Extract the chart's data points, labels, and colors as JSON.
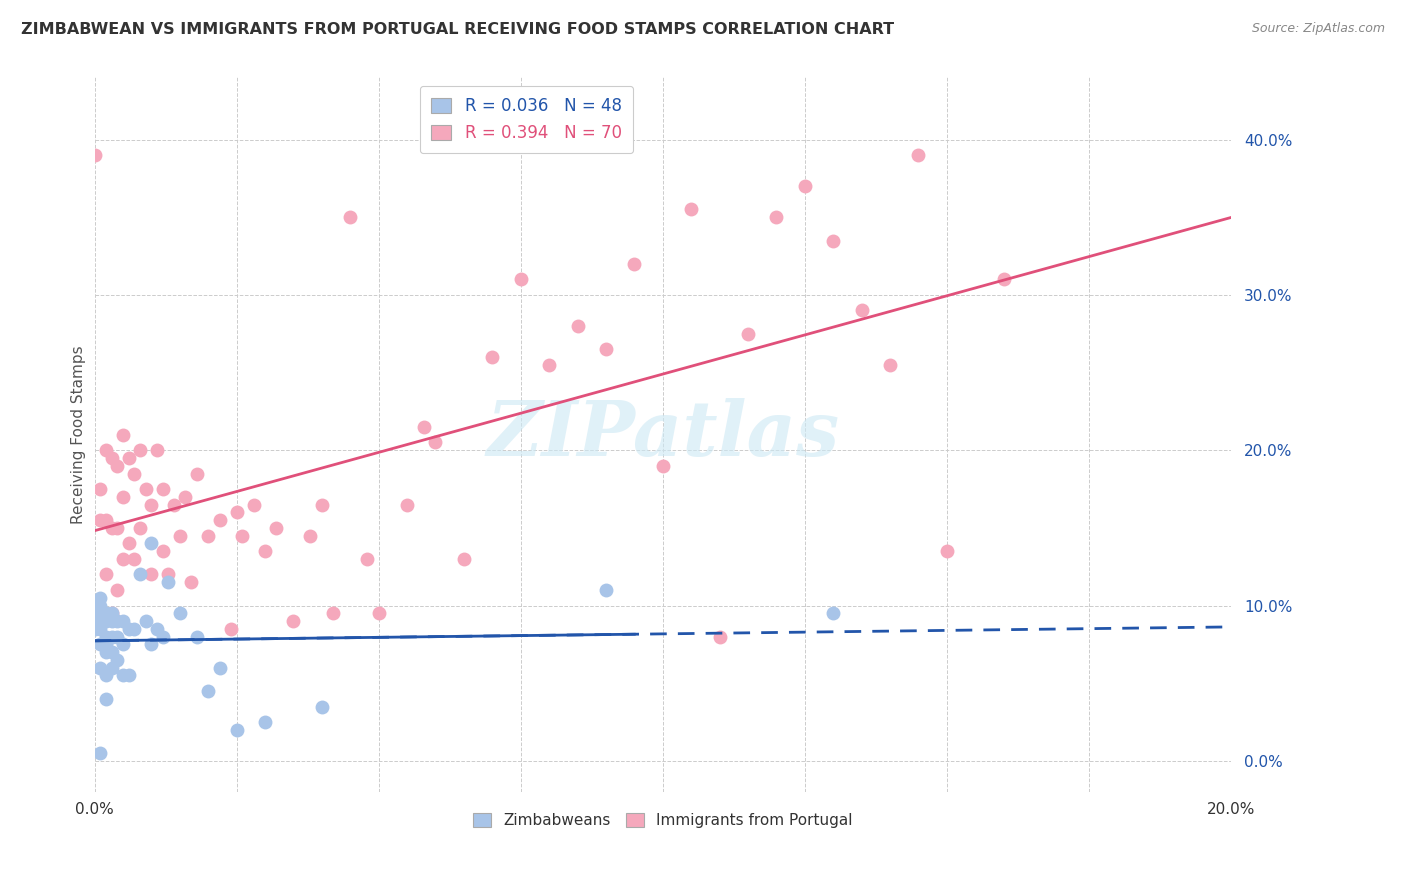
{
  "title": "ZIMBABWEAN VS IMMIGRANTS FROM PORTUGAL RECEIVING FOOD STAMPS CORRELATION CHART",
  "source": "Source: ZipAtlas.com",
  "ylabel": "Receiving Food Stamps",
  "ytick_values": [
    0.0,
    0.1,
    0.2,
    0.3,
    0.4
  ],
  "xlim": [
    0.0,
    0.2
  ],
  "ylim": [
    -0.02,
    0.44
  ],
  "blue_R": 0.036,
  "blue_N": 48,
  "pink_R": 0.394,
  "pink_N": 70,
  "blue_color": "#a8c4e8",
  "pink_color": "#f5a8bc",
  "blue_line_color": "#2255aa",
  "pink_line_color": "#e0507a",
  "watermark": "ZIPatlas",
  "legend_label_blue": "Zimbabweans",
  "legend_label_pink": "Immigrants from Portugal",
  "blue_scatter_x": [
    0.0,
    0.0,
    0.0,
    0.001,
    0.001,
    0.001,
    0.001,
    0.001,
    0.001,
    0.001,
    0.001,
    0.002,
    0.002,
    0.002,
    0.002,
    0.002,
    0.002,
    0.002,
    0.003,
    0.003,
    0.003,
    0.003,
    0.003,
    0.004,
    0.004,
    0.004,
    0.005,
    0.005,
    0.005,
    0.006,
    0.006,
    0.007,
    0.008,
    0.009,
    0.01,
    0.01,
    0.011,
    0.012,
    0.013,
    0.015,
    0.018,
    0.02,
    0.022,
    0.025,
    0.03,
    0.04,
    0.09,
    0.13
  ],
  "blue_scatter_y": [
    0.085,
    0.09,
    0.095,
    0.005,
    0.06,
    0.075,
    0.085,
    0.09,
    0.095,
    0.1,
    0.105,
    0.04,
    0.055,
    0.07,
    0.075,
    0.08,
    0.09,
    0.095,
    0.06,
    0.07,
    0.08,
    0.09,
    0.095,
    0.065,
    0.08,
    0.09,
    0.055,
    0.075,
    0.09,
    0.055,
    0.085,
    0.085,
    0.12,
    0.09,
    0.075,
    0.14,
    0.085,
    0.08,
    0.115,
    0.095,
    0.08,
    0.045,
    0.06,
    0.02,
    0.025,
    0.035,
    0.11,
    0.095
  ],
  "pink_scatter_x": [
    0.0,
    0.001,
    0.001,
    0.002,
    0.002,
    0.002,
    0.003,
    0.003,
    0.003,
    0.004,
    0.004,
    0.004,
    0.005,
    0.005,
    0.005,
    0.006,
    0.006,
    0.007,
    0.007,
    0.008,
    0.008,
    0.009,
    0.01,
    0.01,
    0.011,
    0.012,
    0.012,
    0.013,
    0.014,
    0.015,
    0.016,
    0.017,
    0.018,
    0.02,
    0.022,
    0.024,
    0.025,
    0.026,
    0.028,
    0.03,
    0.032,
    0.035,
    0.038,
    0.04,
    0.042,
    0.045,
    0.048,
    0.05,
    0.055,
    0.058,
    0.06,
    0.065,
    0.07,
    0.075,
    0.08,
    0.085,
    0.09,
    0.095,
    0.1,
    0.105,
    0.11,
    0.115,
    0.12,
    0.125,
    0.13,
    0.135,
    0.14,
    0.145,
    0.15,
    0.16
  ],
  "pink_scatter_y": [
    0.39,
    0.155,
    0.175,
    0.12,
    0.155,
    0.2,
    0.095,
    0.15,
    0.195,
    0.11,
    0.15,
    0.19,
    0.13,
    0.17,
    0.21,
    0.14,
    0.195,
    0.13,
    0.185,
    0.15,
    0.2,
    0.175,
    0.12,
    0.165,
    0.2,
    0.135,
    0.175,
    0.12,
    0.165,
    0.145,
    0.17,
    0.115,
    0.185,
    0.145,
    0.155,
    0.085,
    0.16,
    0.145,
    0.165,
    0.135,
    0.15,
    0.09,
    0.145,
    0.165,
    0.095,
    0.35,
    0.13,
    0.095,
    0.165,
    0.215,
    0.205,
    0.13,
    0.26,
    0.31,
    0.255,
    0.28,
    0.265,
    0.32,
    0.19,
    0.355,
    0.08,
    0.275,
    0.35,
    0.37,
    0.335,
    0.29,
    0.255,
    0.39,
    0.135,
    0.31
  ]
}
